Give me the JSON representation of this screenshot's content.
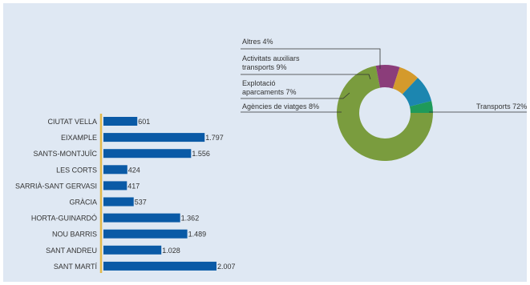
{
  "chart_data": [
    {
      "type": "pie",
      "title": "",
      "slices": [
        {
          "label": "Transports 72%",
          "value": 72,
          "color": "#7a9c3e"
        },
        {
          "label": "Agències de viatges 8%",
          "value": 8,
          "color": "#8b3d7a"
        },
        {
          "label": "Explotació aparcaments 7%",
          "value": 7,
          "color": "#d49a2c"
        },
        {
          "label": "Activitats auxiliars transports 9%",
          "value": 9,
          "color": "#1c86b0"
        },
        {
          "label": "Altres 4%",
          "value": 4,
          "color": "#1f9a5a"
        }
      ],
      "label_lines": {
        "transports": [
          "Transports 72%"
        ],
        "agencies": [
          "Agències de viatges 8%"
        ],
        "explotacio": [
          "Explotació",
          "aparcaments 7%"
        ],
        "activitats": [
          "Activitats auxiliars",
          "transports 9%"
        ],
        "altres": [
          "Altres 4%"
        ]
      }
    },
    {
      "type": "bar",
      "orientation": "horizontal",
      "title": "",
      "categories": [
        "CIUTAT VELLA",
        "EIXAMPLE",
        "SANTS-MONTJUÏC",
        "LES CORTS",
        "SARRIÀ-SANT GERVASI",
        "GRÀCIA",
        "HORTA-GUINARDÓ",
        "NOU BARRIS",
        "SANT ANDREU",
        "SANT MARTÍ"
      ],
      "values": [
        601,
        1797,
        1556,
        424,
        417,
        537,
        1362,
        1489,
        1028,
        2007
      ],
      "value_labels": [
        "601",
        "1.797",
        "1.556",
        "424",
        "417",
        "537",
        "1.362",
        "1.489",
        "1.028",
        "2.007"
      ],
      "bar_color": "#0a5aa6",
      "axis_color": "#e4b94a"
    }
  ]
}
